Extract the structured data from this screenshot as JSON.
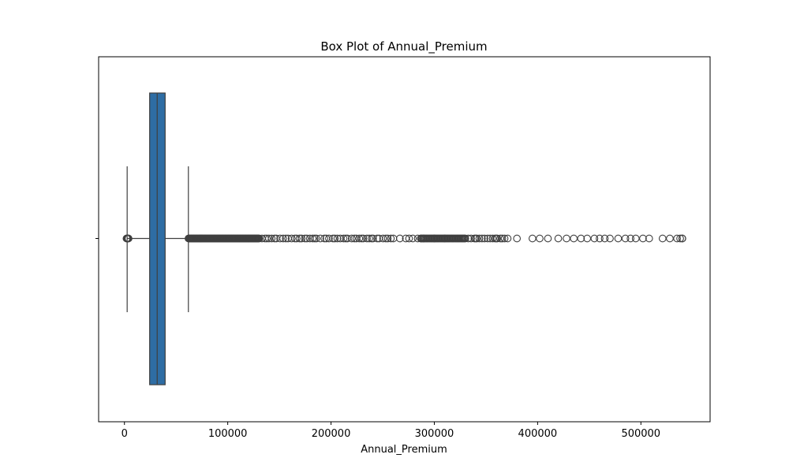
{
  "chart_data": {
    "type": "box",
    "title": "Box Plot of Annual_Premium",
    "xlabel": "Annual_Premium",
    "ylabel": "",
    "orientation": "horizontal",
    "xlim": [
      -25000,
      567000
    ],
    "xticks": [
      0,
      100000,
      200000,
      300000,
      400000,
      500000
    ],
    "xtick_labels": [
      "0",
      "100000",
      "200000",
      "300000",
      "400000",
      "500000"
    ],
    "grid": false,
    "box_color": "#2e6da4",
    "line_color": "#3f3f3f",
    "series": [
      {
        "min": 2630,
        "q1": 24400,
        "median": 31700,
        "q3": 39400,
        "max": 61900,
        "outliers_low_range": [
          2000,
          4000
        ],
        "outliers_high_range": [
          62000,
          540165
        ],
        "sparse_outliers": [
          300000,
          310000,
          340000,
          360000,
          380000,
          395000,
          402000,
          410000,
          420000,
          428000,
          435000,
          442000,
          448000,
          455000,
          460000,
          465000,
          470000,
          478000,
          485000,
          490000,
          495000,
          502000,
          508000,
          521000,
          528000,
          535000,
          538000,
          540000
        ]
      }
    ]
  }
}
